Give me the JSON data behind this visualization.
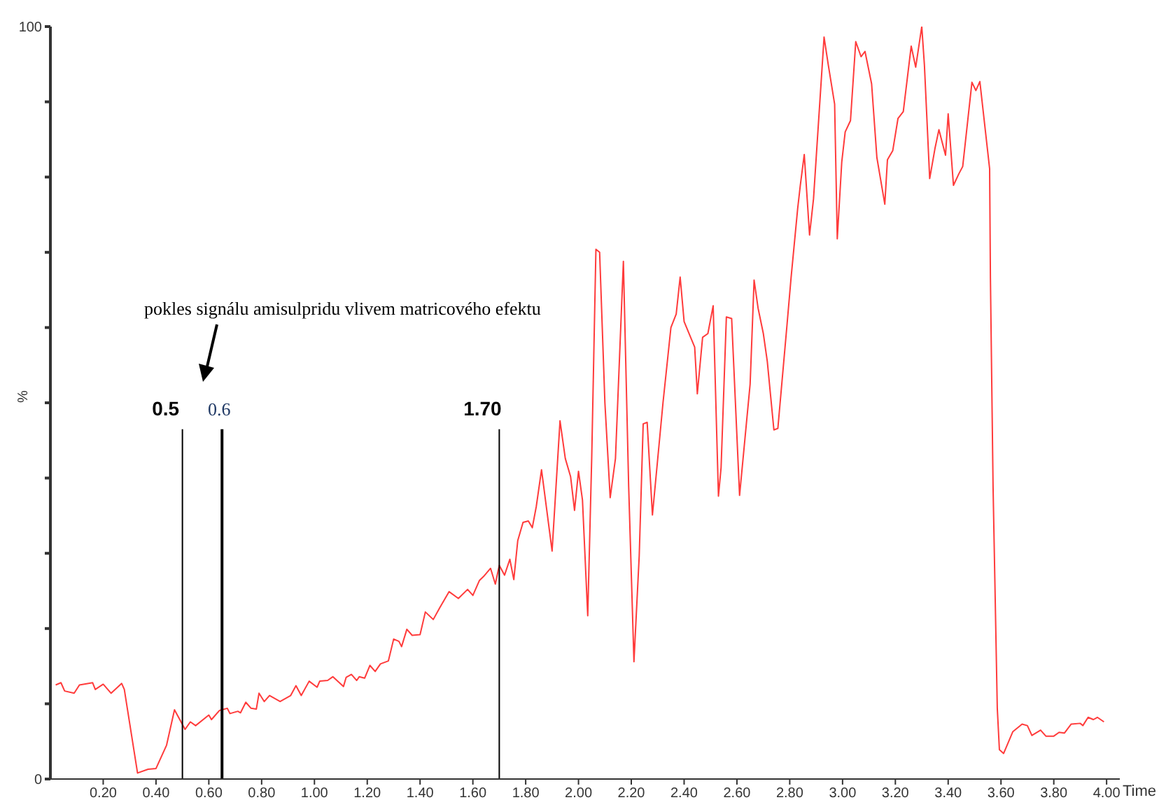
{
  "chart_data": {
    "type": "line",
    "xlabel": "Time",
    "ylabel": "%",
    "annotations": [
      "pokles signálu amisulpridu vlivem matricového efektu"
    ],
    "xlim": [
      0,
      4.05
    ],
    "ylim": [
      0,
      100
    ],
    "xticks": [
      {
        "value": 0.2,
        "label": "0.20"
      },
      {
        "value": 0.4,
        "label": "0.40"
      },
      {
        "value": 0.6,
        "label": "0.60"
      },
      {
        "value": 0.8,
        "label": "0.80"
      },
      {
        "value": 1.0,
        "label": "1.00"
      },
      {
        "value": 1.2,
        "label": "1.20"
      },
      {
        "value": 1.4,
        "label": "1.40"
      },
      {
        "value": 1.6,
        "label": "1.60"
      },
      {
        "value": 1.8,
        "label": "1.80"
      },
      {
        "value": 2.0,
        "label": "2.00"
      },
      {
        "value": 2.2,
        "label": "2.20"
      },
      {
        "value": 2.4,
        "label": "2.40"
      },
      {
        "value": 2.6,
        "label": "2.60"
      },
      {
        "value": 2.8,
        "label": "2.80"
      },
      {
        "value": 3.0,
        "label": "3.00"
      },
      {
        "value": 3.2,
        "label": "3.20"
      },
      {
        "value": 3.4,
        "label": "3.40"
      },
      {
        "value": 3.6,
        "label": "3.60"
      },
      {
        "value": 3.8,
        "label": "3.80"
      },
      {
        "value": 4.0,
        "label": "4.00"
      }
    ],
    "yticks": [
      0,
      {
        "value": 10,
        "label": null
      },
      {
        "value": 20,
        "label": null
      },
      {
        "value": 30,
        "label": null
      },
      {
        "value": 40,
        "label": null
      },
      {
        "value": 50,
        "label": null
      },
      {
        "value": 60,
        "label": null
      },
      {
        "value": 70,
        "label": null
      },
      {
        "value": 80,
        "label": null
      },
      {
        "value": 90,
        "label": null
      },
      100
    ],
    "grid": false,
    "legend": false,
    "marker": "none",
    "line_style": "solid",
    "ref_lines": [
      {
        "axis": "x",
        "value": 0.5,
        "label": "0.5",
        "color": "#000000"
      },
      {
        "axis": "x",
        "value": 0.65,
        "label": "0.6",
        "color": "#000000"
      },
      {
        "axis": "x",
        "value": 1.7,
        "label": "1.70",
        "color": "#000000"
      }
    ],
    "series": [
      {
        "color": "#ff3b3b",
        "x": [
          0.02,
          0.04,
          0.054,
          0.09,
          0.11,
          0.16,
          0.17,
          0.2,
          0.23,
          0.27,
          0.28,
          0.33,
          0.37,
          0.4,
          0.44,
          0.47,
          0.51,
          0.53,
          0.55,
          0.6,
          0.61,
          0.64,
          0.67,
          0.68,
          0.71,
          0.72,
          0.74,
          0.76,
          0.78,
          0.79,
          0.81,
          0.83,
          0.87,
          0.91,
          0.93,
          0.95,
          0.98,
          1.01,
          1.02,
          1.05,
          1.07,
          1.11,
          1.12,
          1.14,
          1.16,
          1.17,
          1.19,
          1.21,
          1.23,
          1.25,
          1.28,
          1.3,
          1.32,
          1.33,
          1.35,
          1.37,
          1.4,
          1.42,
          1.45,
          1.475,
          1.51,
          1.545,
          1.58,
          1.6,
          1.625,
          1.64,
          1.667,
          1.685,
          1.7,
          1.72,
          1.74,
          1.755,
          1.77,
          1.79,
          1.81,
          1.825,
          1.84,
          1.86,
          1.9,
          1.93,
          1.95,
          1.97,
          1.985,
          2.0,
          2.015,
          2.035,
          2.05,
          2.066,
          2.08,
          2.1,
          2.12,
          2.14,
          2.17,
          2.19,
          2.21,
          2.23,
          2.245,
          2.26,
          2.28,
          2.32,
          2.35,
          2.37,
          2.385,
          2.4,
          2.44,
          2.45,
          2.47,
          2.49,
          2.51,
          2.53,
          2.54,
          2.56,
          2.58,
          2.61,
          2.65,
          2.665,
          2.68,
          2.7,
          2.715,
          2.74,
          2.755,
          2.79,
          2.805,
          2.83,
          2.84,
          2.855,
          2.875,
          2.89,
          2.93,
          2.946,
          2.97,
          2.98,
          2.997,
          3.01,
          3.03,
          3.05,
          3.07,
          3.085,
          3.11,
          3.13,
          3.16,
          3.17,
          3.19,
          3.21,
          3.23,
          3.26,
          3.277,
          3.3,
          3.31,
          3.33,
          3.35,
          3.365,
          3.39,
          3.4,
          3.42,
          3.44,
          3.455,
          3.49,
          3.505,
          3.52,
          3.557,
          3.56,
          3.57,
          3.586,
          3.594,
          3.61,
          3.645,
          3.68,
          3.7,
          3.717,
          3.75,
          3.77,
          3.8,
          3.82,
          3.84,
          3.866,
          3.9,
          3.91,
          3.93,
          3.95,
          3.965,
          3.99
        ],
        "values": [
          12.5,
          12.8,
          11.7,
          11.4,
          12.5,
          12.8,
          11.9,
          12.6,
          11.4,
          12.7,
          11.9,
          0.8,
          1.3,
          1.4,
          4.5,
          9.2,
          6.6,
          7.6,
          7.1,
          8.5,
          7.9,
          9.1,
          9.4,
          8.7,
          9.0,
          8.8,
          10.2,
          9.4,
          9.3,
          11.4,
          10.3,
          11.1,
          10.3,
          11.1,
          12.4,
          11.1,
          13.0,
          12.2,
          13.0,
          13.1,
          13.6,
          12.3,
          13.5,
          13.9,
          13.1,
          13.6,
          13.4,
          15.1,
          14.3,
          15.3,
          15.7,
          18.6,
          18.3,
          17.6,
          19.9,
          19.1,
          19.2,
          22.2,
          21.2,
          22.8,
          24.9,
          24.0,
          25.2,
          24.4,
          26.4,
          26.9,
          28.0,
          25.9,
          28.4,
          27.1,
          29.2,
          26.5,
          31.7,
          34.1,
          34.3,
          33.4,
          36.2,
          41.1,
          30.3,
          47.6,
          42.6,
          40.2,
          35.7,
          40.9,
          37.1,
          21.7,
          42.6,
          70.4,
          70.0,
          50.0,
          37.4,
          42.6,
          68.8,
          38.9,
          15.6,
          29.7,
          47.2,
          47.4,
          35.1,
          50.0,
          60.0,
          61.8,
          66.7,
          60.8,
          57.4,
          51.2,
          58.7,
          59.2,
          62.9,
          37.6,
          41.4,
          61.4,
          61.2,
          37.7,
          52.5,
          66.3,
          62.6,
          59.2,
          55.5,
          46.4,
          46.6,
          60.5,
          66.6,
          75.8,
          78.9,
          83.0,
          72.3,
          77.1,
          98.6,
          94.9,
          89.7,
          71.8,
          82.0,
          86.0,
          87.5,
          98.0,
          96.0,
          96.7,
          92.4,
          82.6,
          76.4,
          82.3,
          83.5,
          87.8,
          88.7,
          97.4,
          94.6,
          100,
          94.9,
          79.8,
          83.8,
          86.3,
          82.9,
          88.4,
          78.9,
          80.4,
          81.4,
          92.6,
          91.5,
          92.7,
          81.1,
          66.6,
          38.9,
          9.4,
          3.9,
          3.4,
          6.3,
          7.3,
          7.1,
          5.8,
          6.5,
          5.7,
          5.7,
          6.2,
          6.1,
          7.3,
          7.4,
          7.1,
          8.2,
          7.9,
          8.2,
          7.6
        ]
      }
    ]
  }
}
